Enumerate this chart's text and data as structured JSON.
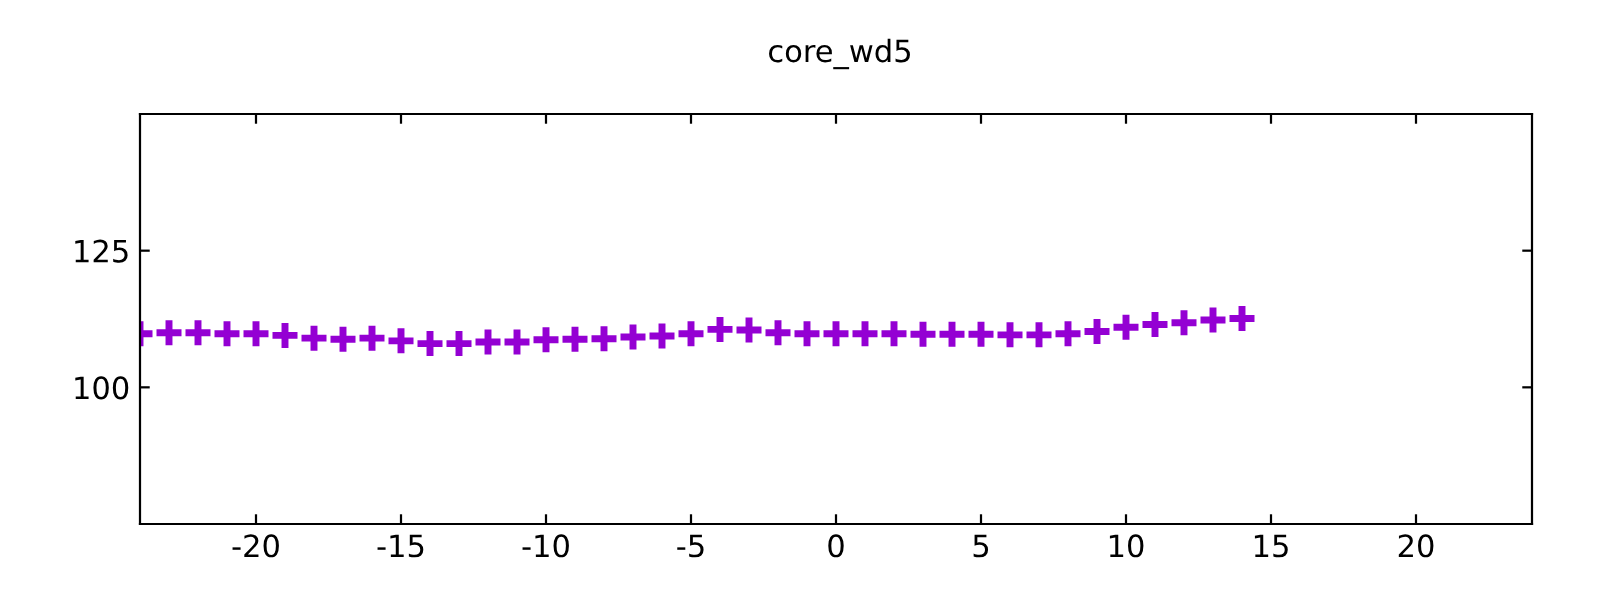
{
  "chart_data": {
    "type": "scatter",
    "title": "core_wd5",
    "x": [
      -24,
      -23,
      -22,
      -21,
      -20,
      -19,
      -18,
      -17,
      -16,
      -15,
      -14,
      -13,
      -12,
      -11,
      -10,
      -9,
      -8,
      -7,
      -6,
      -5,
      -4,
      -3,
      -2,
      -1,
      0,
      1,
      2,
      3,
      4,
      5,
      6,
      7,
      8,
      9,
      10,
      11,
      12,
      13,
      14
    ],
    "series": [
      {
        "color": "#9400d3",
        "values": [
          109.8,
          110,
          110,
          109.8,
          109.8,
          109.5,
          109,
          108.8,
          109,
          108.5,
          108,
          108,
          108.3,
          108.3,
          108.7,
          108.8,
          108.9,
          109.2,
          109.4,
          109.8,
          110.6,
          110.5,
          110,
          109.8,
          109.8,
          109.8,
          109.8,
          109.7,
          109.7,
          109.7,
          109.6,
          109.6,
          109.8,
          110.2,
          111,
          111.5,
          111.8,
          112.3,
          112.6
        ]
      }
    ],
    "xlim": [
      -24,
      24
    ],
    "ylim": [
      75,
      150
    ],
    "xticks": [
      -20,
      -15,
      -10,
      -5,
      0,
      5,
      10,
      15,
      20
    ],
    "yticks": [
      100,
      125
    ],
    "marker": "cross",
    "grid": false,
    "legend": false
  }
}
